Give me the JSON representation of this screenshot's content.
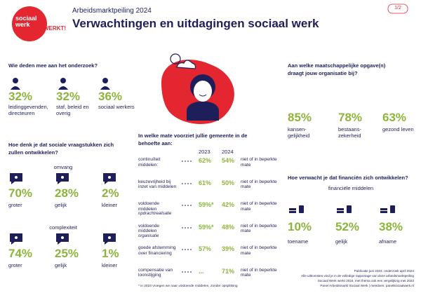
{
  "header": {
    "logo": {
      "line1": "sociaal",
      "line2": "werk",
      "tagline": "WERKT!"
    },
    "subtitle": "Arbeidsmarktpeiling 2024",
    "title": "Verwachtingen en uitdagingen sociaal werk",
    "page": "1/2"
  },
  "participants": {
    "question": "Wie deden mee aan het onderzoek?",
    "items": [
      {
        "value": "32%",
        "label": "leidinggevenden, directeuren"
      },
      {
        "value": "32%",
        "label": "staf, beleid en overig"
      },
      {
        "value": "36%",
        "label": "sociaal werkers"
      }
    ]
  },
  "social_issues": {
    "question": "Hoe denk je dat sociale vraagstukken zich zullen ontwikkelen?",
    "groups": [
      {
        "title": "omvang",
        "items": [
          {
            "value": "70%",
            "label": "groter"
          },
          {
            "value": "28%",
            "label": "gelijk"
          },
          {
            "value": "2%",
            "label": "kleiner"
          }
        ]
      },
      {
        "title": "complexiteit",
        "items": [
          {
            "value": "74%",
            "label": "groter"
          },
          {
            "value": "25%",
            "label": "gelijk"
          },
          {
            "value": "1%",
            "label": "kleiner"
          }
        ]
      }
    ]
  },
  "municipality": {
    "question": "In welke mate voorziet jullie gemeente in de behoefte aan:",
    "columns": [
      "2023",
      "2024"
    ],
    "rows": [
      {
        "label": "continuïteit middelen:",
        "value_2023": "62%",
        "value_2024": "54%",
        "note": "niet of in beperkte mate"
      },
      {
        "label": "keuzevrijheid bij inzet van middelen",
        "value_2023": "61%",
        "value_2024": "50%",
        "note": "niet of in beperkte mate"
      },
      {
        "label": "voldoende middelen",
        "sublabel": "opdrachtrealisatie",
        "value_2023": "59%*",
        "value_2024": "42%",
        "note": "niet of in beperkte mate"
      },
      {
        "label": "voldoende middelen",
        "sublabel": "organisatie",
        "value_2023": "59%*",
        "value_2024": "48%",
        "note": "niet of in beperkte mate"
      },
      {
        "label": "goede afstemming over financiering",
        "value_2023": "57%",
        "value_2024": "39%",
        "note": "niet of in beperkte mate"
      },
      {
        "label": "compensatie van loonstijging",
        "value_2023": "...",
        "value_2024": "71%",
        "note": "niet of in beperkte mate"
      }
    ],
    "footnote": "* in 2023 vroegen we naar voldoende middelen, zonder opsplitsing"
  },
  "societal_tasks": {
    "question": "Aan welke maatschappelijke opgave(n) draagt jouw organisatie bij?",
    "items": [
      {
        "value": "85%",
        "label": "kansen-gelijkheid"
      },
      {
        "value": "78%",
        "label": "bestaans-zekerheid"
      },
      {
        "value": "63%",
        "label": "gezond leven"
      }
    ]
  },
  "finances": {
    "question": "Hoe verwacht je dat financiën zich ontwikkelen?",
    "subtitle": "financiële middelen",
    "items": [
      {
        "value": "10%",
        "label": "toename"
      },
      {
        "value": "52%",
        "label": "gelijk"
      },
      {
        "value": "38%",
        "label": "afname"
      }
    ]
  },
  "footer": {
    "lines": [
      "Publicatie juni 2024; onderzoek april 2024",
      "Alle uitkomsten vind je in de volledige rapportage van deze arbeidsmarktpeiling",
      "Sociaal Werk werkt 2024, met thema ook een vergelijking met 2023",
      "Panel Arbeidsmarkt Sociaal Werk | meedoen: panelsociaalwerk.nl"
    ]
  }
}
